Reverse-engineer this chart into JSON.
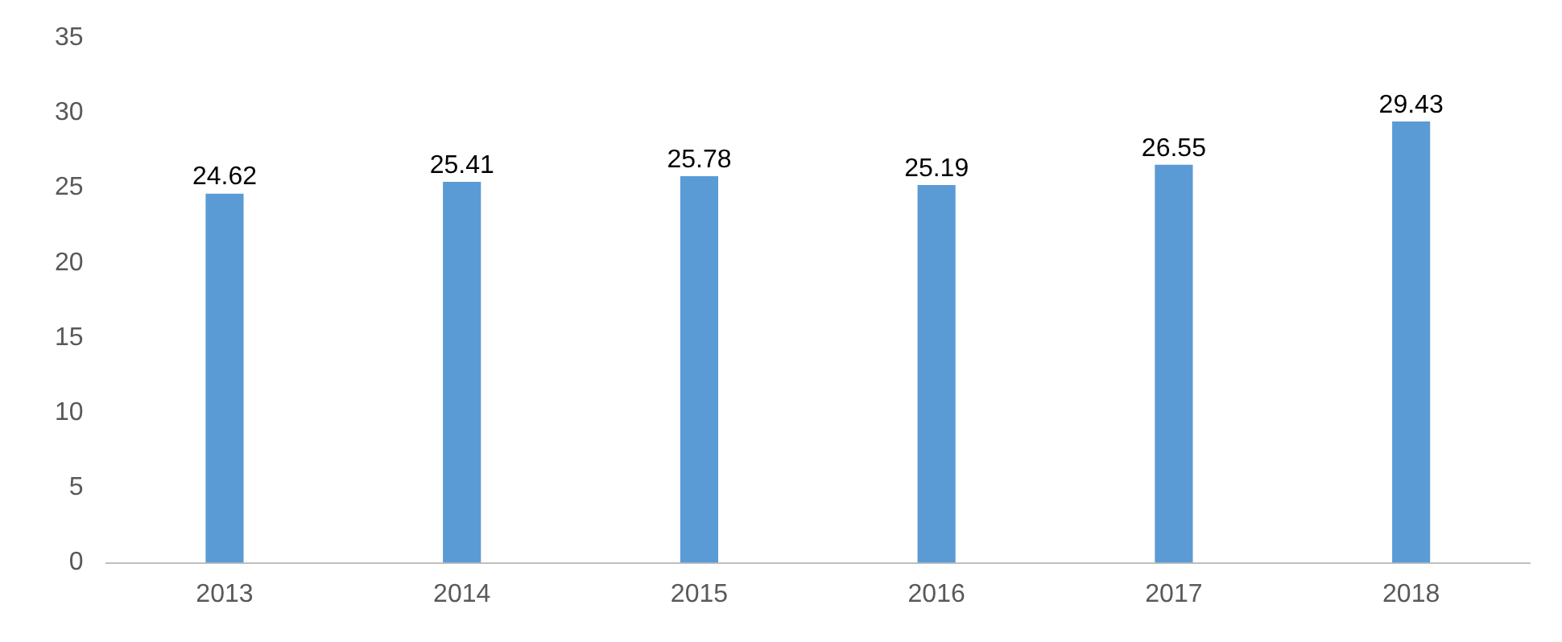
{
  "chart_data": {
    "type": "bar",
    "categories": [
      "2013",
      "2014",
      "2015",
      "2016",
      "2017",
      "2018"
    ],
    "values": [
      24.62,
      25.41,
      25.78,
      25.19,
      26.55,
      29.43
    ],
    "color": "#5b9bd5",
    "ylim": [
      0,
      35
    ],
    "yticks": [
      0,
      5,
      10,
      15,
      20,
      25,
      30,
      35
    ],
    "grid": false,
    "data_labels": true
  }
}
